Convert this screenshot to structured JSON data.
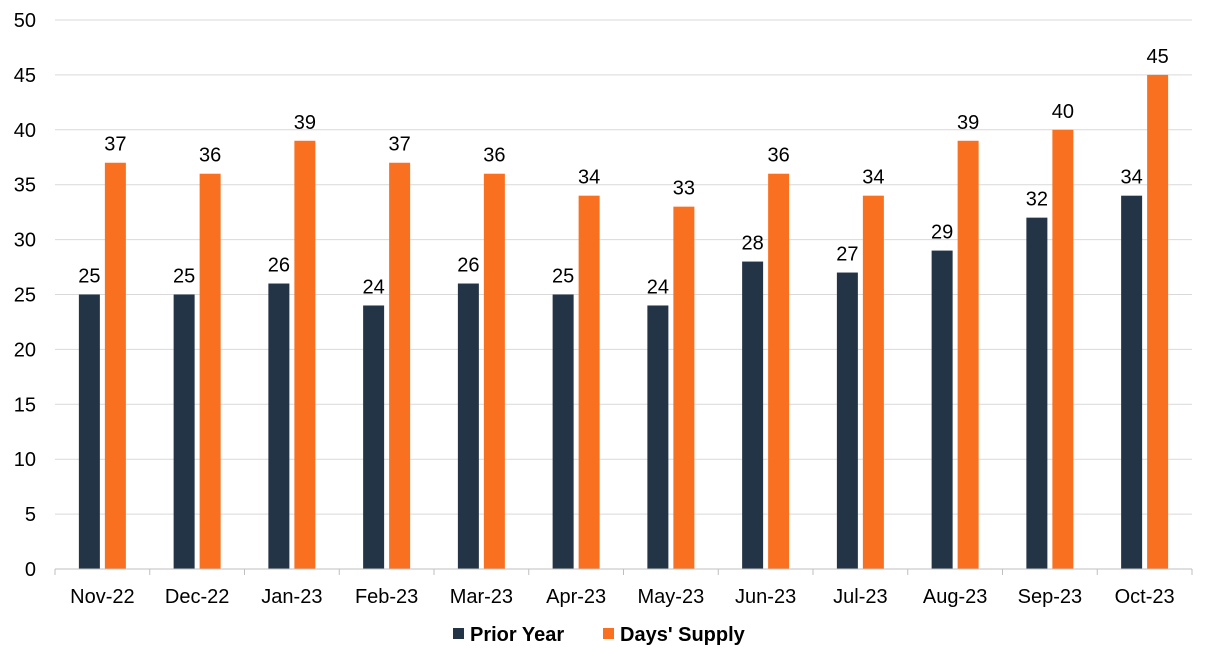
{
  "chart_data": {
    "type": "bar",
    "title": "",
    "xlabel": "",
    "ylabel": "",
    "ylim": [
      0,
      50
    ],
    "yticks": [
      0,
      5,
      10,
      15,
      20,
      25,
      30,
      35,
      40,
      45,
      50
    ],
    "grid": true,
    "legend_position": "bottom",
    "categories": [
      "Nov-22",
      "Dec-22",
      "Jan-23",
      "Feb-23",
      "Mar-23",
      "Apr-23",
      "May-23",
      "Jun-23",
      "Jul-23",
      "Aug-23",
      "Sep-23",
      "Oct-23"
    ],
    "series": [
      {
        "name": "Prior Year",
        "color": "#243447",
        "values": [
          25,
          25,
          26,
          24,
          26,
          25,
          24,
          28,
          27,
          29,
          32,
          34
        ]
      },
      {
        "name": "Days' Supply",
        "color": "#F97020",
        "values": [
          37,
          36,
          39,
          37,
          36,
          34,
          33,
          36,
          34,
          39,
          40,
          45
        ]
      }
    ]
  }
}
